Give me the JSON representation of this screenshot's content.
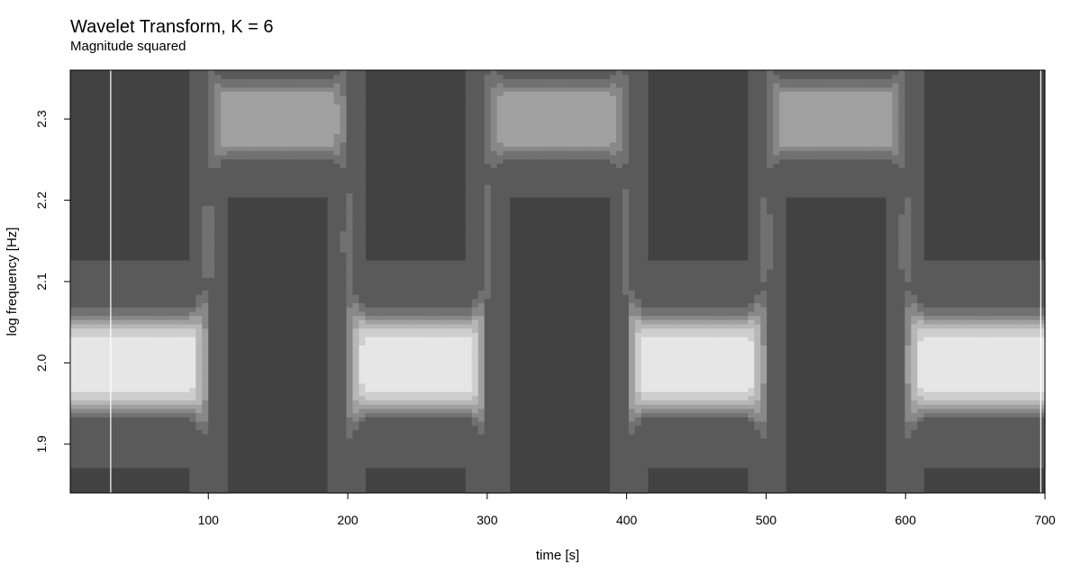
{
  "chart_data": {
    "type": "heatmap",
    "title": "Wavelet Transform, K = 6",
    "subtitle": "Magnitude squared",
    "xlabel": "time [s]",
    "ylabel": "log frequency [Hz]",
    "xlim": [
      1,
      700
    ],
    "ylim": [
      1.84,
      2.36
    ],
    "x_ticks": [
      100,
      200,
      300,
      400,
      500,
      600,
      700
    ],
    "y_ticks": [
      1.9,
      2.0,
      2.1,
      2.2,
      2.3
    ],
    "grid": false,
    "legend": "none",
    "colormap": "grayscale",
    "background_level": 0.26,
    "segments": [
      {
        "t_start": 0,
        "t_end": 100,
        "log_frequency": 2.0
      },
      {
        "t_start": 100,
        "t_end": 200,
        "log_frequency": 2.3
      },
      {
        "t_start": 200,
        "t_end": 300,
        "log_frequency": 2.0
      },
      {
        "t_start": 300,
        "t_end": 400,
        "log_frequency": 2.3
      },
      {
        "t_start": 400,
        "t_end": 500,
        "log_frequency": 2.0
      },
      {
        "t_start": 500,
        "t_end": 600,
        "log_frequency": 2.3
      },
      {
        "t_start": 600,
        "t_end": 700,
        "log_frequency": 2.0
      }
    ],
    "peak_level_low_band": 0.88,
    "peak_level_high_band": 0.62,
    "cone_of_influence_x": [
      30,
      697
    ]
  }
}
